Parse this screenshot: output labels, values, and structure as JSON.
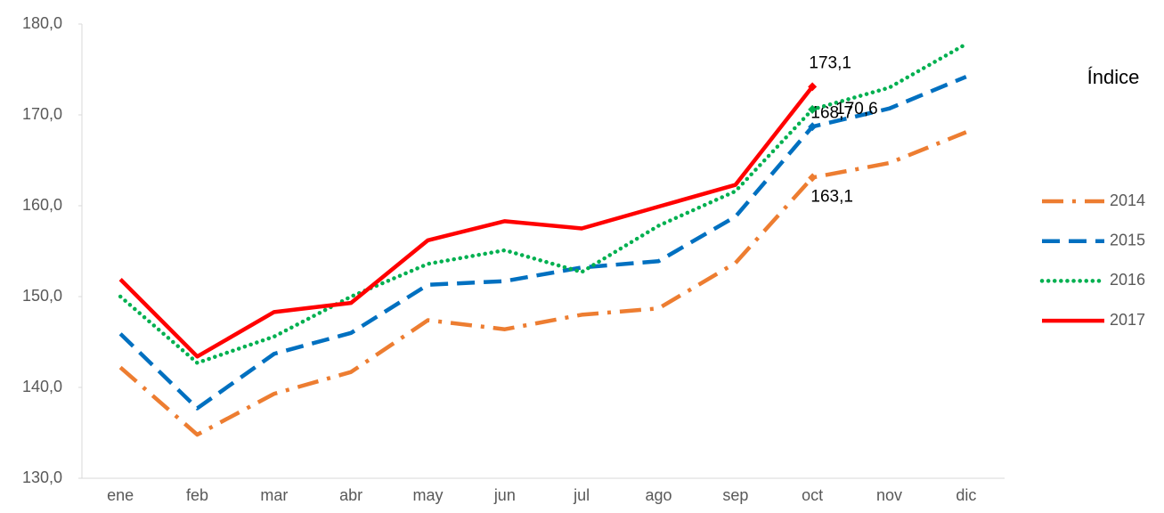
{
  "chart_data": {
    "type": "line",
    "categories": [
      "ene",
      "feb",
      "mar",
      "abr",
      "may",
      "jun",
      "jul",
      "ago",
      "sep",
      "oct",
      "nov",
      "dic"
    ],
    "series": [
      {
        "name": "2014",
        "color": "#ed7d31",
        "dash": "long-dash-dot",
        "values": [
          142.2,
          134.8,
          139.3,
          141.7,
          147.4,
          146.4,
          148.0,
          148.7,
          153.7,
          163.1,
          164.7,
          168.1
        ],
        "value_labels": [
          null,
          null,
          null,
          null,
          null,
          null,
          null,
          null,
          null,
          "163,1",
          null,
          null
        ]
      },
      {
        "name": "2015",
        "color": "#0070c0",
        "dash": "dash",
        "values": [
          145.9,
          137.7,
          143.7,
          146.0,
          151.3,
          151.7,
          153.2,
          153.9,
          158.8,
          168.7,
          170.7,
          174.2
        ],
        "value_labels": [
          null,
          null,
          null,
          null,
          null,
          null,
          null,
          null,
          null,
          "168,7",
          null,
          null
        ]
      },
      {
        "name": "2016",
        "color": "#00b050",
        "dash": "dot",
        "values": [
          150.0,
          142.7,
          145.6,
          150.0,
          153.6,
          155.1,
          152.7,
          157.8,
          161.6,
          170.6,
          173.0,
          177.8
        ],
        "value_labels": [
          null,
          null,
          null,
          null,
          null,
          null,
          null,
          null,
          null,
          "170,6",
          null,
          null
        ]
      },
      {
        "name": "2017",
        "color": "#ff0000",
        "dash": "solid",
        "values": [
          151.9,
          143.4,
          148.3,
          149.3,
          156.2,
          158.3,
          157.5,
          159.9,
          162.3,
          173.1,
          null,
          null
        ],
        "value_labels": [
          null,
          null,
          null,
          null,
          null,
          null,
          null,
          null,
          null,
          "173,1",
          null,
          null
        ]
      }
    ],
    "legend_title": "Índice",
    "legend": "right",
    "ylim": [
      130,
      180
    ],
    "yticks": [
      {
        "value": 130,
        "label": "130,0"
      },
      {
        "value": 140,
        "label": "140,0"
      },
      {
        "value": 150,
        "label": "150,0"
      },
      {
        "value": 160,
        "label": "160,0"
      },
      {
        "value": 170,
        "label": "170,0"
      },
      {
        "value": 180,
        "label": "180,0"
      }
    ],
    "grid": false
  }
}
